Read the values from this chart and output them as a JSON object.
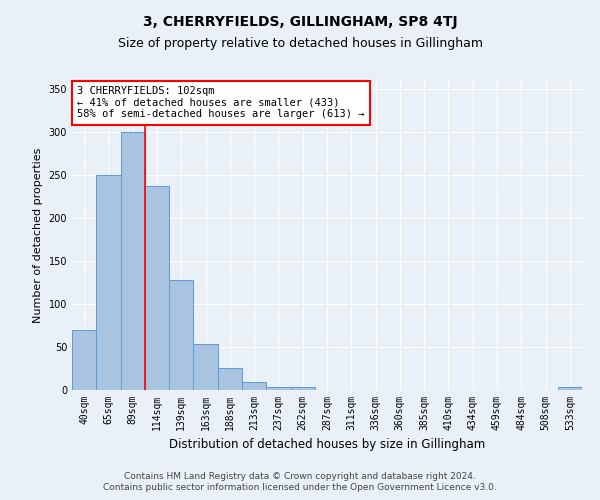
{
  "title": "3, CHERRYFIELDS, GILLINGHAM, SP8 4TJ",
  "subtitle": "Size of property relative to detached houses in Gillingham",
  "xlabel": "Distribution of detached houses by size in Gillingham",
  "ylabel": "Number of detached properties",
  "categories": [
    "40sqm",
    "65sqm",
    "89sqm",
    "114sqm",
    "139sqm",
    "163sqm",
    "188sqm",
    "213sqm",
    "237sqm",
    "262sqm",
    "287sqm",
    "311sqm",
    "336sqm",
    "360sqm",
    "385sqm",
    "410sqm",
    "434sqm",
    "459sqm",
    "484sqm",
    "508sqm",
    "533sqm"
  ],
  "values": [
    70,
    250,
    300,
    237,
    128,
    53,
    25,
    9,
    4,
    3,
    0,
    0,
    0,
    0,
    0,
    0,
    0,
    0,
    0,
    0,
    3
  ],
  "bar_color": "#a8c4e0",
  "bar_edge_color": "#5b9bd5",
  "annotation_line1": "3 CHERRYFIELDS: 102sqm",
  "annotation_line2": "← 41% of detached houses are smaller (433)",
  "annotation_line3": "58% of semi-detached houses are larger (613) →",
  "annotation_box_color": "white",
  "annotation_box_edge": "red",
  "ylim": [
    0,
    360
  ],
  "yticks": [
    0,
    50,
    100,
    150,
    200,
    250,
    300,
    350
  ],
  "footer1": "Contains HM Land Registry data © Crown copyright and database right 2024.",
  "footer2": "Contains public sector information licensed under the Open Government Licence v3.0.",
  "bg_color": "#eaf0f8",
  "plot_bg_color": "#eaf0f8",
  "grid_color": "white",
  "title_fontsize": 10,
  "subtitle_fontsize": 9,
  "xlabel_fontsize": 8.5,
  "ylabel_fontsize": 8,
  "tick_fontsize": 7,
  "footer_fontsize": 6.5,
  "annot_fontsize": 7.5
}
